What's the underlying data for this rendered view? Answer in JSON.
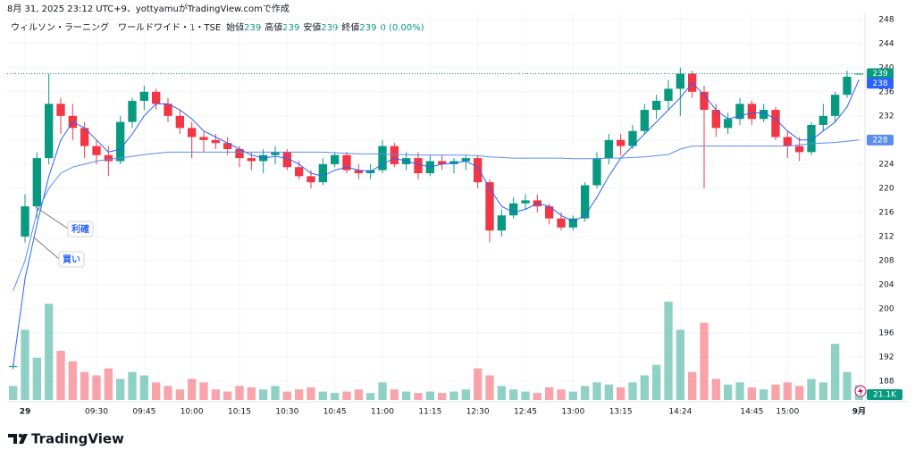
{
  "chart_data": {
    "type": "candlestick",
    "attribution": "8月 31, 2025 23:12 UTC+9、yottyamuがTradingView.comで作成",
    "symbol": "ウィルソン・ラーニング　ワールドワイド・1・TSE",
    "ohlc_labels": [
      "始値",
      "高値",
      "安値",
      "終値"
    ],
    "change_text": "0 (0.00%)",
    "brand": "TradingView",
    "annotations": [
      "利確",
      "買い"
    ],
    "up_color": "#089981",
    "down_color": "#f23645",
    "categories": [
      null,
      "29",
      null,
      null,
      null,
      null,
      null,
      "09:30",
      null,
      null,
      null,
      "09:45",
      null,
      null,
      null,
      "10:00",
      null,
      null,
      null,
      "10:15",
      null,
      null,
      null,
      "10:30",
      null,
      null,
      null,
      "10:45",
      null,
      null,
      null,
      "11:00",
      null,
      null,
      null,
      "11:15",
      null,
      null,
      null,
      "12:30",
      null,
      null,
      null,
      "12:45",
      null,
      null,
      null,
      "13:00",
      null,
      null,
      null,
      "13:15",
      null,
      null,
      null,
      null,
      "14:24",
      null,
      null,
      null,
      null,
      null,
      "14:45",
      null,
      null,
      "15:00",
      null,
      null,
      null,
      null,
      null,
      "9月"
    ],
    "open": [
      190.5,
      212,
      217,
      225,
      234,
      232,
      230,
      227,
      225.5,
      224.5,
      231,
      234.5,
      236,
      234,
      232,
      230,
      228.5,
      228,
      227.5,
      226.5,
      225,
      224.5,
      225.5,
      226,
      223.5,
      222,
      221,
      224,
      225.5,
      223,
      222.5,
      223,
      227,
      224,
      225,
      222.5,
      224.5,
      224,
      224.5,
      225,
      221,
      213,
      215.5,
      217.5,
      218,
      217,
      215,
      213.5,
      215,
      220.5,
      225,
      228,
      227,
      229.5,
      233,
      234.5,
      236.5,
      239,
      236,
      233,
      230,
      231.5,
      234,
      231.5,
      233,
      228.5,
      227,
      226,
      230.5,
      232,
      235.5,
      239
    ],
    "high": [
      191,
      219,
      226,
      239,
      235,
      234,
      231,
      228,
      227,
      232,
      235,
      237,
      236.5,
      235,
      233,
      231,
      229.5,
      229,
      228.5,
      227,
      226,
      226.5,
      227,
      226.5,
      224.5,
      223,
      225,
      226,
      226,
      224,
      224,
      228,
      227.5,
      226,
      226,
      225.5,
      225.5,
      225,
      225.5,
      225.5,
      221.5,
      216.5,
      218.5,
      219,
      219,
      217.5,
      216,
      215.5,
      221,
      226,
      229,
      229,
      230.5,
      234,
      235.5,
      238,
      240,
      239.5,
      237,
      234,
      232.5,
      235,
      234.5,
      234,
      233.5,
      229.5,
      228.5,
      231,
      234,
      236,
      239.5,
      239
    ],
    "low": [
      190,
      211,
      215,
      224,
      229,
      228,
      225,
      224,
      222,
      224,
      230,
      233,
      233,
      231,
      229,
      225,
      226,
      226.5,
      225.5,
      223.5,
      223,
      222.5,
      224,
      223,
      221.5,
      220,
      220.5,
      223.5,
      222.5,
      221.5,
      221.5,
      222.5,
      223.5,
      223,
      221.5,
      222,
      223,
      222.5,
      223,
      220,
      211,
      212,
      215,
      216.5,
      216,
      214,
      213,
      213,
      214.5,
      220,
      224,
      225.5,
      226.5,
      229,
      231.5,
      233,
      232,
      235,
      220,
      228.5,
      229,
      230.5,
      230.5,
      231,
      228,
      225,
      224.5,
      225.5,
      229.5,
      231,
      235,
      239
    ],
    "close": [
      190.5,
      217,
      225,
      234,
      232,
      230,
      227,
      225.5,
      224.5,
      231,
      234.5,
      236,
      234,
      232,
      230,
      228.5,
      228,
      227.5,
      226.5,
      225,
      224.5,
      225.5,
      226,
      223.5,
      222,
      221,
      224,
      225.5,
      223,
      222.5,
      223,
      227,
      224,
      225,
      222.5,
      224.5,
      224,
      224.5,
      225,
      221,
      213,
      215.5,
      217.5,
      218,
      217,
      215,
      213.5,
      215,
      220.5,
      225,
      228,
      227,
      229.5,
      233,
      234.5,
      236.5,
      239,
      236,
      233,
      230,
      231.5,
      234,
      231.5,
      233,
      228.5,
      227,
      226,
      230.5,
      232,
      235.5,
      238.5,
      239
    ],
    "volume": [
      20000,
      100000,
      60000,
      137000,
      70000,
      55000,
      40000,
      35000,
      45000,
      30000,
      40000,
      35000,
      25000,
      20000,
      15000,
      30000,
      25000,
      15000,
      12000,
      20000,
      18000,
      15000,
      20000,
      12000,
      15000,
      18000,
      12000,
      10000,
      12000,
      15000,
      10000,
      25000,
      15000,
      12000,
      10000,
      12000,
      10000,
      12000,
      15000,
      45000,
      35000,
      20000,
      15000,
      12000,
      10000,
      18000,
      15000,
      12000,
      20000,
      25000,
      22000,
      18000,
      25000,
      35000,
      50000,
      140000,
      100000,
      40000,
      110000,
      30000,
      22000,
      25000,
      18000,
      15000,
      22000,
      25000,
      20000,
      30000,
      25000,
      80000,
      40000,
      21100
    ],
    "volume_last_label": "21.1K",
    "vlim": [
      0,
      150000
    ],
    "series": [
      {
        "color": "#2962ff",
        "values": [
          190.5,
          205,
          214,
          222,
          228,
          231,
          230,
          228,
          226,
          226.5,
          229,
          232,
          234,
          234,
          233,
          231.5,
          229.5,
          228.5,
          227.5,
          226.5,
          225.5,
          225,
          225.3,
          225,
          224,
          222.5,
          222,
          223,
          223.5,
          223,
          222.8,
          224,
          225,
          224.5,
          224,
          223.5,
          224,
          224.2,
          224.5,
          223.5,
          220,
          217,
          216,
          216.5,
          217.5,
          217,
          215.5,
          214.5,
          215.5,
          218.5,
          222,
          225,
          227,
          229,
          231,
          233,
          235,
          237.5,
          235.5,
          233,
          231.5,
          232,
          232.5,
          232.5,
          231.5,
          229.5,
          228,
          228,
          229.5,
          231,
          233.5,
          238
        ]
      },
      {
        "color": "#5b8def",
        "values": [
          203,
          208,
          216,
          220,
          222.5,
          223.5,
          224,
          224.5,
          224.8,
          225,
          225.3,
          225.6,
          225.8,
          226,
          226,
          226,
          226,
          226,
          226,
          226,
          226,
          226,
          226,
          226,
          226,
          226,
          226,
          225.9,
          225.8,
          225.7,
          225.7,
          225.7,
          225.6,
          225.6,
          225.5,
          225.5,
          225.5,
          225.5,
          225.5,
          225.4,
          225.2,
          225.1,
          225,
          225,
          225,
          225,
          225,
          224.9,
          224.9,
          224.9,
          225,
          225,
          225.1,
          225.2,
          225.4,
          225.6,
          226.5,
          227,
          227,
          227,
          227,
          227,
          227,
          227,
          227,
          227,
          227.2,
          227.4,
          227.5,
          227.6,
          227.8,
          228
        ]
      }
    ],
    "ylim": [
      184.6,
      249
    ],
    "yticks": [
      188,
      192,
      196,
      200,
      204,
      208,
      212,
      216,
      220,
      224,
      228,
      232,
      236,
      240,
      244,
      248
    ],
    "grid": true
  }
}
